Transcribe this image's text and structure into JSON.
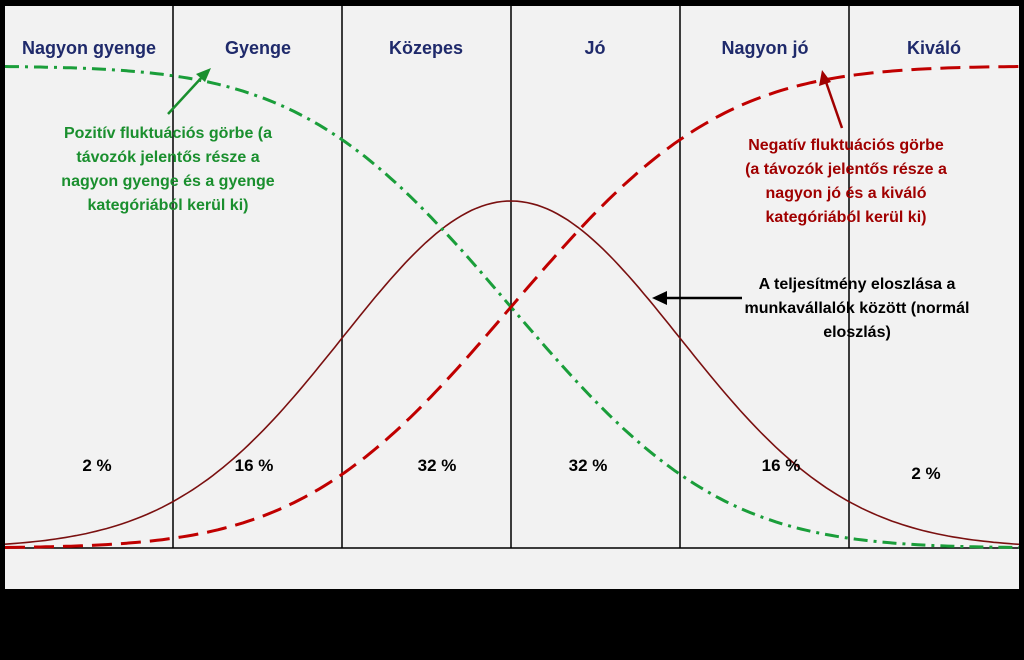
{
  "categories": [
    "Nagyon gyenge",
    "Gyenge",
    "Közepes",
    "Jó",
    "Nagyon jó",
    "Kiváló"
  ],
  "percentages": [
    "2 %",
    "16 %",
    "32 %",
    "32 %",
    "16 %",
    "2 %"
  ],
  "annotations": {
    "positive": {
      "lines": [
        "Pozitív fluktuációs görbe (a",
        "távozók jelentős része a",
        "nagyon gyenge és a gyenge",
        "kategóriából kerül ki)"
      ],
      "color": "#1a8f2e"
    },
    "negative": {
      "lines": [
        "Negatív fluktuációs görbe",
        "(a távozók jelentős része a",
        "nagyon jó és a kiváló",
        "kategóriából kerül ki)"
      ],
      "color": "#a00000"
    },
    "normal": {
      "lines": [
        "A teljesítmény eloszlása a",
        "munkavállalók között (normál",
        "eloszlás)"
      ],
      "color": "#000000"
    }
  },
  "colors": {
    "background": "#000000",
    "panel": "#f2f2f2",
    "normal_curve": "#7a1010",
    "positive_curve": "#1a9e3a",
    "negative_curve": "#c00000",
    "category_text": "#1f2a6b"
  }
}
